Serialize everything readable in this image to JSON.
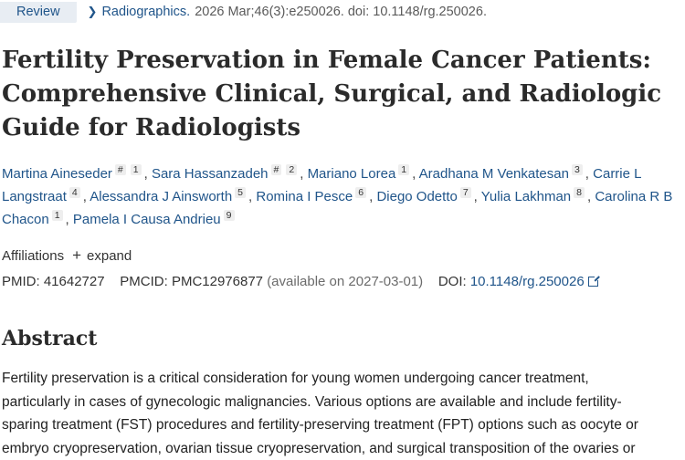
{
  "header": {
    "badge": "Review",
    "journal": "Radiographics.",
    "citation": "2026 Mar;46(3):e250026. doi: 10.1148/rg.250026."
  },
  "title": "Fertility Preservation in Female Cancer Patients: Comprehensive Clinical, Surgical, and Radiologic Guide for Radiologists",
  "authors": [
    {
      "name": "Martina Aineseder",
      "sups": [
        "#",
        "1"
      ]
    },
    {
      "name": "Sara Hassanzadeh",
      "sups": [
        "#",
        "2"
      ]
    },
    {
      "name": "Mariano Lorea",
      "sups": [
        "1"
      ]
    },
    {
      "name": "Aradhana M Venkatesan",
      "sups": [
        "3"
      ]
    },
    {
      "name": "Carrie L Langstraat",
      "sups": [
        "4"
      ]
    },
    {
      "name": "Alessandra J Ainsworth",
      "sups": [
        "5"
      ]
    },
    {
      "name": "Romina I Pesce",
      "sups": [
        "6"
      ]
    },
    {
      "name": "Diego Odetto",
      "sups": [
        "7"
      ]
    },
    {
      "name": "Yulia Lakhman",
      "sups": [
        "8"
      ]
    },
    {
      "name": "Carolina R B Chacon",
      "sups": [
        "1"
      ]
    },
    {
      "name": "Pamela I Causa Andrieu",
      "sups": [
        "9"
      ]
    }
  ],
  "affiliations": {
    "label": "Affiliations",
    "plus": "+",
    "expand": "expand"
  },
  "ids": {
    "pmid_label": "PMID:",
    "pmid": "41642727",
    "pmcid_label": "PMCID:",
    "pmcid": "PMC12976877",
    "pmcid_note": "(available on 2027-03-01)",
    "doi_label": "DOI:",
    "doi": "10.1148/rg.250026"
  },
  "abstract": {
    "heading": "Abstract",
    "lines": [
      "Fertility preservation is a critical consideration for young women undergoing cancer treatment,",
      "particularly in cases of gynecologic malignancies. Various options are available and include fertility-",
      "sparing treatment (FST) procedures and fertility-preserving treatment (FPT) options such as oocyte or",
      "embryo cryopreservation, ovarian tissue cryopreservation, and surgical transposition of the ovaries or"
    ]
  }
}
